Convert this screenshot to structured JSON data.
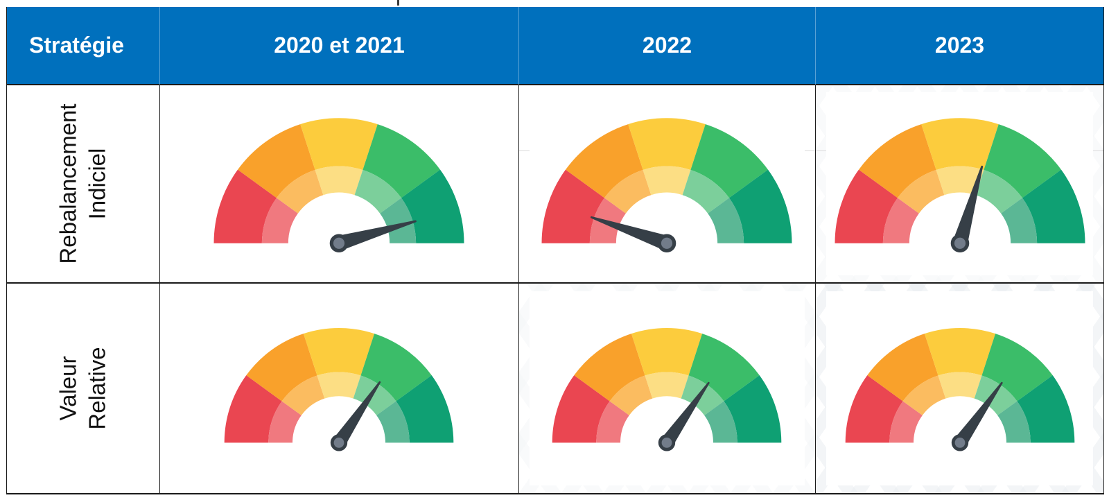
{
  "colors": {
    "header_bg": "#0070BD",
    "header_text": "#FFFFFF",
    "grid_border": "#1A1A1A"
  },
  "table": {
    "columns": [
      {
        "label": "Stratégie"
      },
      {
        "label": "2020 et 2021"
      },
      {
        "label": "2022"
      },
      {
        "label": "2023"
      }
    ],
    "rows": [
      {
        "label_lines": [
          "Rebalancement",
          "Indiciel"
        ],
        "gauges": [
          {
            "period": "2020 et 2021",
            "needle_angle_deg": 16
          },
          {
            "period": "2022",
            "needle_angle_deg": 161
          },
          {
            "period": "2023",
            "needle_angle_deg": 74
          }
        ]
      },
      {
        "label_lines": [
          "Valeur",
          "Relative"
        ],
        "gauges": [
          {
            "period": "2020 et 2021",
            "needle_angle_deg": 56
          },
          {
            "period": "2022",
            "needle_angle_deg": 55
          },
          {
            "period": "2023",
            "needle_angle_deg": 55
          }
        ]
      }
    ]
  },
  "gauge": {
    "outer_colors": [
      "#EA4651",
      "#F9A12B",
      "#FCCC3D",
      "#3BBD69",
      "#0FA073"
    ],
    "inner_colors": [
      "#F0797F",
      "#FBBC60",
      "#FCDE84",
      "#7CCF9B",
      "#5BB795"
    ],
    "segment_labels": [
      "rouge",
      "orange",
      "jaune",
      "vert",
      "vert foncé"
    ],
    "needle_color": "#363F47",
    "hub_center_color": "#727C8A",
    "scale_note": "180° = extrémité gauche (rouge / défavorable), 0° = extrémité droite (vert foncé / favorable)"
  },
  "chart_data": [
    {
      "type": "gauge",
      "row": "Rebalancement Indiciel",
      "period": "2020 et 2021",
      "needle_angle_deg": 16,
      "value_pct_of_scale": 91,
      "zone": "vert foncé (très favorable)"
    },
    {
      "type": "gauge",
      "row": "Rebalancement Indiciel",
      "period": "2022",
      "needle_angle_deg": 161,
      "value_pct_of_scale": 11,
      "zone": "rouge (défavorable)"
    },
    {
      "type": "gauge",
      "row": "Rebalancement Indiciel",
      "period": "2023",
      "needle_angle_deg": 74,
      "value_pct_of_scale": 59,
      "zone": "jaune-vert (neutre à favorable)"
    },
    {
      "type": "gauge",
      "row": "Valeur Relative",
      "period": "2020 et 2021",
      "needle_angle_deg": 56,
      "value_pct_of_scale": 69,
      "zone": "vert (favorable)"
    },
    {
      "type": "gauge",
      "row": "Valeur Relative",
      "period": "2022",
      "needle_angle_deg": 55,
      "value_pct_of_scale": 69,
      "zone": "vert (favorable)"
    },
    {
      "type": "gauge",
      "row": "Valeur Relative",
      "period": "2023",
      "needle_angle_deg": 55,
      "value_pct_of_scale": 69,
      "zone": "vert (favorable)"
    }
  ]
}
